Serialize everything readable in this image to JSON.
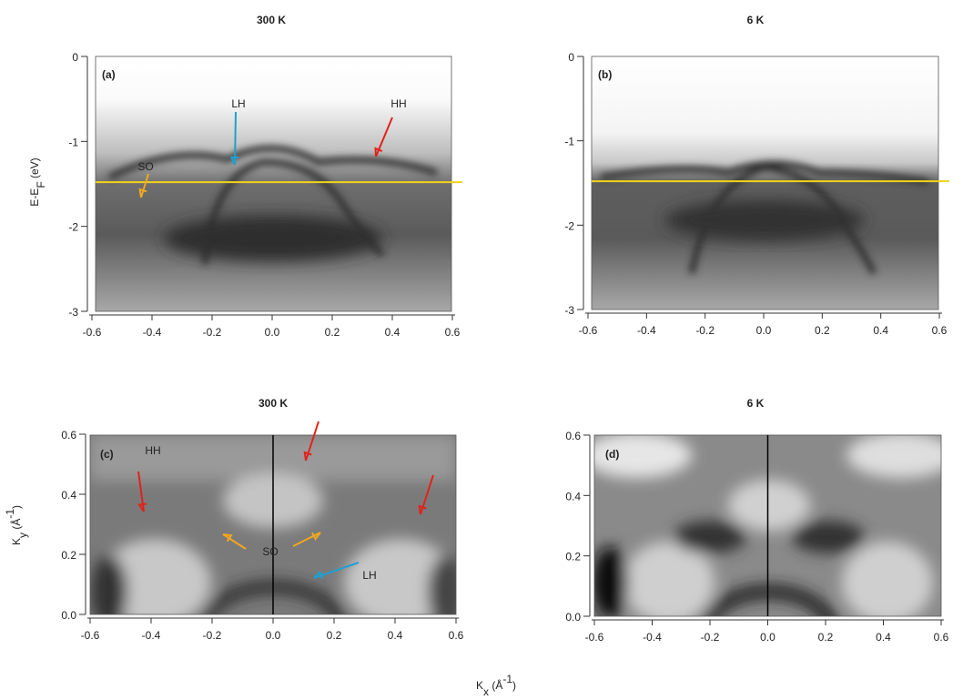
{
  "xlabel": [
    "K",
    "x",
    " (Å",
    "-1",
    ")"
  ],
  "chart_data": [
    {
      "type": "image",
      "title": "300 K",
      "title_color": "#e32119",
      "panel": "(a)",
      "ylabel": [
        "E-E",
        "F",
        " (eV)"
      ],
      "xlim": [
        -0.6,
        0.6
      ],
      "xticks": [
        -0.6,
        -0.4,
        -0.2,
        {
          "value": 0,
          "label": "0.0"
        },
        0.2,
        0.4,
        0.6
      ],
      "ylim": [
        -3,
        0
      ],
      "yticks": [
        0,
        -1,
        -2,
        -3
      ],
      "hline": -1.48,
      "hline_color": "#f2d21b",
      "annotations": [
        {
          "text": "SO",
          "color": "#f0a81e"
        },
        {
          "text": "LH",
          "color": "#1ea0d0"
        },
        {
          "text": "HH",
          "color": "#e32119"
        }
      ]
    },
    {
      "type": "image",
      "title": "6 K",
      "title_color": "#2e75b6",
      "panel": "(b)",
      "xlim": [
        -0.6,
        0.6
      ],
      "xticks": [
        -0.6,
        -0.4,
        -0.2,
        {
          "value": 0,
          "label": "0.0"
        },
        0.2,
        0.4,
        0.6
      ],
      "ylim": [
        -3,
        0
      ],
      "yticks": [
        0,
        -1,
        -2,
        -3
      ],
      "hline": -1.48,
      "hline_color": "#f2d21b"
    },
    {
      "type": "image",
      "title": "300 K",
      "title_color": "#e32119",
      "panel": "(c)",
      "ylabel": [
        "K",
        "y",
        " (Å",
        "-1",
        ")"
      ],
      "xlim": [
        -0.6,
        0.6
      ],
      "xticks": [
        -0.6,
        -0.4,
        -0.2,
        {
          "value": 0,
          "label": "0.0"
        },
        0.2,
        0.4,
        0.6
      ],
      "ylim": [
        0,
        0.6
      ],
      "yticks": [
        {
          "value": 0,
          "label": "0.0"
        },
        0.2,
        0.4,
        0.6
      ],
      "vline": 0,
      "vline_color": "#000000",
      "annotations": [
        {
          "text": "HH",
          "color": "#e32119"
        },
        {
          "text": "SO",
          "color": "#f0a81e"
        },
        {
          "text": "LH",
          "color": "#1ea0d0"
        }
      ]
    },
    {
      "type": "image",
      "title": "6 K",
      "title_color": "#2e75b6",
      "panel": "(d)",
      "xlim": [
        -0.6,
        0.6
      ],
      "xticks": [
        -0.6,
        -0.4,
        -0.2,
        {
          "value": 0,
          "label": "0.0"
        },
        0.2,
        0.4,
        0.6
      ],
      "ylim": [
        0,
        0.6
      ],
      "yticks": [
        {
          "value": 0,
          "label": "0.0"
        },
        0.2,
        0.4,
        0.6
      ],
      "vline": 0,
      "vline_color": "#000000"
    }
  ]
}
